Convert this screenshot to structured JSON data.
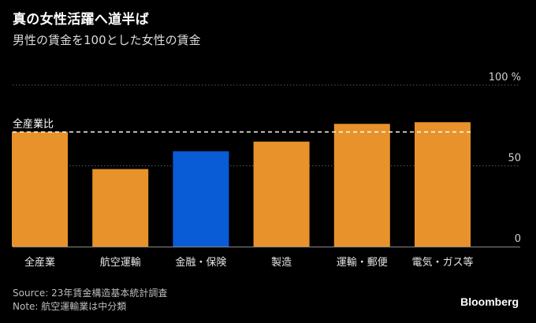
{
  "title": "真の女性活躍へ道半ば",
  "subtitle": "男性の賃金を100とした女性の賃金",
  "source": "Source: 23年賃金構造基本統計調査",
  "note": "Note: 航空運輸業は中分類",
  "brand": "Bloomberg",
  "chart_data": {
    "type": "bar",
    "categories": [
      "全産業",
      "航空運輸",
      "金融・保険",
      "製造",
      "運輸・郵便",
      "電気・ガス等"
    ],
    "values": [
      71,
      48,
      59,
      65,
      76,
      77
    ],
    "highlight_index": 2,
    "bar_color": "#E8922B",
    "highlight_color": "#0A5BD6",
    "ylim": [
      0,
      100
    ],
    "yticks": [
      0,
      50,
      100
    ],
    "ytick_labels": [
      "0",
      "50",
      "100 %"
    ],
    "reference": {
      "label": "全産業比",
      "value": 71
    }
  }
}
